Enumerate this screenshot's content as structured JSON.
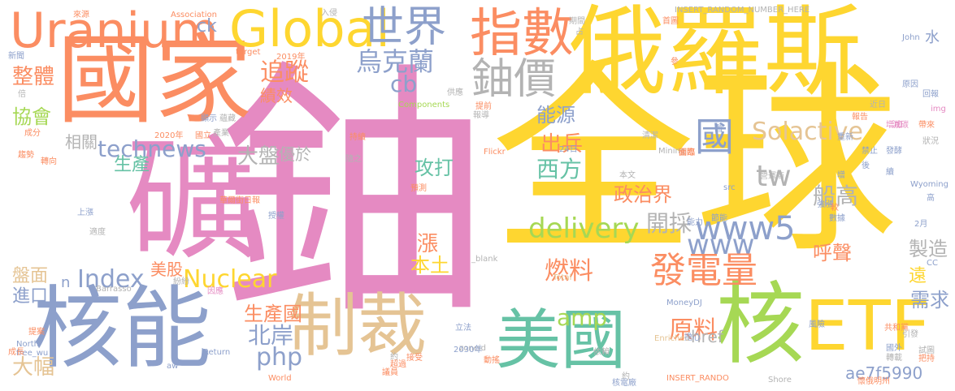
{
  "palette": {
    "pink": "#e58ac2",
    "yellow": "#fed630",
    "orange": "#fb8d62",
    "blue": "#8da0cb",
    "green": "#66c2a5",
    "lime": "#a6d854",
    "tan": "#e5c494",
    "grey": "#b3b3b3"
  },
  "words": [
    {
      "text": "鈾",
      "color": "pink"
    },
    {
      "text": "全球",
      "color": "yellow"
    },
    {
      "text": "俄羅斯",
      "color": "yellow"
    },
    {
      "text": "礦",
      "color": "pink"
    },
    {
      "text": "國家",
      "color": "orange"
    },
    {
      "text": "核能",
      "color": "blue"
    },
    {
      "text": "制裁",
      "color": "tan"
    },
    {
      "text": "美國",
      "color": "green"
    },
    {
      "text": "核",
      "color": "lime"
    },
    {
      "text": "ETF",
      "color": "yellow"
    },
    {
      "text": "Uranium",
      "color": "orange"
    },
    {
      "text": "Global",
      "color": "yellow"
    },
    {
      "text": "世界",
      "color": "blue"
    },
    {
      "text": "指數",
      "color": "orange"
    },
    {
      "text": "鈾價",
      "color": "grey"
    },
    {
      "text": "國",
      "color": "blue"
    },
    {
      "text": "烏克蘭",
      "color": "blue"
    },
    {
      "text": "Solactive",
      "color": "tan"
    },
    {
      "text": "technews",
      "color": "blue"
    },
    {
      "text": "delivery",
      "color": "lime"
    },
    {
      "text": "www5",
      "color": "blue"
    },
    {
      "text": "www",
      "color": "blue"
    },
    {
      "text": "Index",
      "color": "blue"
    },
    {
      "text": "Nuclear",
      "color": "yellow"
    },
    {
      "text": "發電量",
      "color": "orange"
    },
    {
      "text": "原料",
      "color": "orange"
    },
    {
      "text": "燃料",
      "color": "orange"
    },
    {
      "text": "amp",
      "color": "lime"
    },
    {
      "text": "php",
      "color": "blue"
    },
    {
      "text": "ae7f5990",
      "color": "blue"
    },
    {
      "text": "能源",
      "color": "blue"
    },
    {
      "text": "追蹤",
      "color": "orange"
    },
    {
      "text": "整體",
      "color": "orange"
    },
    {
      "text": "協會",
      "color": "lime"
    },
    {
      "text": "cb",
      "color": "blue"
    },
    {
      "text": "tw",
      "color": "grey"
    },
    {
      "text": "開採",
      "color": "grey"
    },
    {
      "text": "北岸",
      "color": "blue"
    },
    {
      "text": "需求",
      "color": "blue"
    },
    {
      "text": "大幅",
      "color": "tan"
    },
    {
      "text": "進口",
      "color": "blue"
    },
    {
      "text": "盤面",
      "color": "tan"
    },
    {
      "text": "生產國",
      "color": "orange"
    },
    {
      "text": "政治界",
      "color": "orange"
    },
    {
      "text": "西方",
      "color": "green"
    },
    {
      "text": "出兵",
      "color": "orange"
    },
    {
      "text": "攻打",
      "color": "green"
    },
    {
      "text": "漲",
      "color": "orange"
    },
    {
      "text": "本土",
      "color": "yellow"
    },
    {
      "text": "美股",
      "color": "orange"
    },
    {
      "text": "呼聲",
      "color": "orange"
    },
    {
      "text": "製造",
      "color": "grey"
    },
    {
      "text": "船高",
      "color": "grey"
    },
    {
      "text": "遠",
      "color": "yellow"
    },
    {
      "text": "水",
      "color": "blue"
    },
    {
      "text": "href",
      "color": "grey"
    },
    {
      "text": "生產",
      "color": "green"
    },
    {
      "text": "大盤",
      "color": "grey"
    },
    {
      "text": "優於",
      "color": "grey"
    },
    {
      "text": "相關",
      "color": "grey"
    },
    {
      "text": "績效",
      "color": "orange"
    },
    {
      "text": "ck",
      "color": "blue"
    },
    {
      "text": "n",
      "color": "blue"
    },
    {
      "text": "來源",
      "color": "orange"
    },
    {
      "text": "Association",
      "color": "orange"
    },
    {
      "text": "入侵",
      "color": "grey"
    },
    {
      "text": "INSERT_RANDOM_NUMBER_HERE",
      "color": "grey"
    },
    {
      "text": "INSERT_RANDO",
      "color": "orange"
    },
    {
      "text": "target",
      "color": "orange"
    },
    {
      "text": "2019年",
      "color": "orange"
    },
    {
      "text": "新聞",
      "color": "blue"
    },
    {
      "text": "Return",
      "color": "blue"
    },
    {
      "text": "Components",
      "color": "lime"
    },
    {
      "text": "Mining",
      "color": "grey"
    },
    {
      "text": "Flickr",
      "color": "orange"
    },
    {
      "text": "_blank",
      "color": "grey"
    },
    {
      "text": "zoneid",
      "color": "grey"
    },
    {
      "text": "Enriched",
      "color": "tan"
    },
    {
      "text": "MoneyDJ",
      "color": "blue"
    },
    {
      "text": "Total",
      "color": "tan"
    },
    {
      "text": "World",
      "color": "orange"
    },
    {
      "text": "Barrasso",
      "color": "grey"
    },
    {
      "text": "Wyoming",
      "color": "blue"
    },
    {
      "text": "Shore",
      "color": "grey"
    },
    {
      "text": "John",
      "color": "blue"
    },
    {
      "text": "src",
      "color": "blue"
    },
    {
      "text": "CC",
      "color": "blue"
    },
    {
      "text": "2030年",
      "color": "blue"
    },
    {
      "text": "2020年",
      "color": "orange"
    },
    {
      "text": "24日",
      "color": "blue"
    },
    {
      "text": "2月",
      "color": "blue"
    },
    {
      "text": "img",
      "color": "pink"
    },
    {
      "text": "North",
      "color": "blue"
    },
    {
      "text": "free_wu",
      "color": "blue"
    },
    {
      "text": "aw",
      "color": "blue"
    },
    {
      "text": "華爾街日報",
      "color": "orange"
    },
    {
      "text": "預測",
      "color": "orange"
    },
    {
      "text": "原因",
      "color": "blue"
    },
    {
      "text": "回報",
      "color": "blue"
    },
    {
      "text": "報告",
      "color": "orange"
    },
    {
      "text": "成分",
      "color": "orange"
    },
    {
      "text": "趨勢",
      "color": "orange"
    },
    {
      "text": "供應",
      "color": "grey"
    },
    {
      "text": "提前",
      "color": "orange"
    },
    {
      "text": "增加",
      "color": "pink"
    },
    {
      "text": "禁止",
      "color": "blue"
    },
    {
      "text": "國外",
      "color": "blue"
    },
    {
      "text": "共和黨",
      "color": "orange"
    },
    {
      "text": "懷俄明州",
      "color": "orange"
    },
    {
      "text": "依賴",
      "color": "grey"
    },
    {
      "text": "立法",
      "color": "blue"
    },
    {
      "text": "動搖",
      "color": "orange"
    },
    {
      "text": "核電廠",
      "color": "blue"
    },
    {
      "text": "擔心",
      "color": "blue"
    },
    {
      "text": "風險",
      "color": "blue"
    },
    {
      "text": "強漲",
      "color": "blue"
    },
    {
      "text": "節能",
      "color": "blue"
    },
    {
      "text": "數據",
      "color": "blue"
    },
    {
      "text": "減碳",
      "color": "pink"
    },
    {
      "text": "狀況",
      "color": "grey"
    },
    {
      "text": "帶來",
      "color": "orange"
    },
    {
      "text": "近日",
      "color": "grey"
    },
    {
      "text": "轉向",
      "color": "orange"
    },
    {
      "text": "上漲",
      "color": "blue"
    },
    {
      "text": "適度",
      "color": "grey"
    },
    {
      "text": "議員",
      "color": "orange"
    },
    {
      "text": "接受",
      "color": "orange"
    },
    {
      "text": "提案",
      "color": "orange"
    },
    {
      "text": "成長",
      "color": "orange"
    },
    {
      "text": "首圖",
      "color": "orange"
    },
    {
      "text": "期間",
      "color": "grey"
    },
    {
      "text": "占",
      "color": "grey"
    },
    {
      "text": "參",
      "color": "orange"
    },
    {
      "text": "本文",
      "color": "grey"
    },
    {
      "text": "國際",
      "color": "orange"
    },
    {
      "text": "營運商",
      "color": "grey"
    },
    {
      "text": "清潔",
      "color": "grey"
    },
    {
      "text": "面臨",
      "color": "orange"
    },
    {
      "text": "顯示",
      "color": "blue"
    },
    {
      "text": "國立",
      "color": "orange"
    },
    {
      "text": "產業",
      "color": "grey"
    },
    {
      "text": "紛紛",
      "color": "grey"
    },
    {
      "text": "因應",
      "color": "pink"
    },
    {
      "text": "隨之",
      "color": "grey"
    },
    {
      "text": "持續",
      "color": "orange"
    },
    {
      "text": "約",
      "color": "grey"
    },
    {
      "text": "把持",
      "color": "orange"
    },
    {
      "text": "引發",
      "color": "grey"
    },
    {
      "text": "試圖",
      "color": "grey"
    },
    {
      "text": "轉載",
      "color": "grey"
    },
    {
      "text": "發酵",
      "color": "blue"
    },
    {
      "text": "蘊藏",
      "color": "grey"
    },
    {
      "text": "報導",
      "color": "grey"
    },
    {
      "text": "重新",
      "color": "blue"
    },
    {
      "text": "約",
      "color": "grey"
    },
    {
      "text": "能力",
      "color": "blue"
    },
    {
      "text": "暫",
      "color": "blue"
    },
    {
      "text": "倍",
      "color": "grey"
    },
    {
      "text": "高",
      "color": "blue"
    },
    {
      "text": "續",
      "color": "blue"
    },
    {
      "text": "較",
      "color": "orange"
    },
    {
      "text": "後",
      "color": "blue"
    },
    {
      "text": "增",
      "color": "blue"
    },
    {
      "text": "超過",
      "color": "orange"
    },
    {
      "text": "授權",
      "color": "blue"
    }
  ]
}
